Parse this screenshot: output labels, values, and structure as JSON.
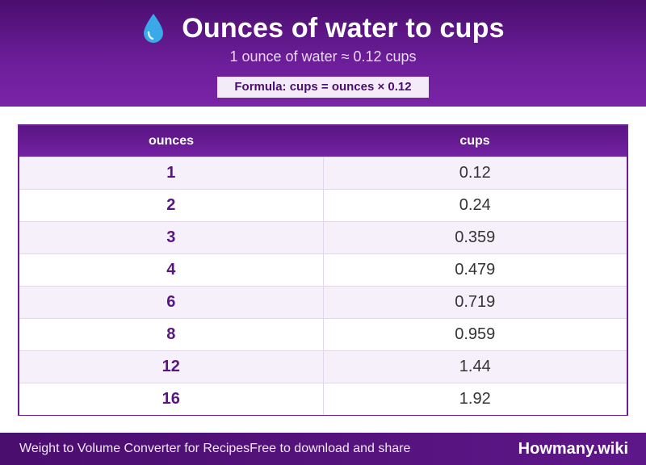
{
  "header": {
    "icon": "water-drop-icon",
    "title": "Ounces of water to cups",
    "subtitle": "1 ounce of water ≈ 0.12 cups",
    "formula": "Formula: cups = ounces × 0.12"
  },
  "table": {
    "columns": [
      "ounces",
      "cups"
    ],
    "rows": [
      {
        "ounces": "1",
        "cups": "0.12"
      },
      {
        "ounces": "2",
        "cups": "0.24"
      },
      {
        "ounces": "3",
        "cups": "0.359"
      },
      {
        "ounces": "4",
        "cups": "0.479"
      },
      {
        "ounces": "6",
        "cups": "0.719"
      },
      {
        "ounces": "8",
        "cups": "0.959"
      },
      {
        "ounces": "12",
        "cups": "1.44"
      },
      {
        "ounces": "16",
        "cups": "1.92"
      }
    ]
  },
  "footer": {
    "left_text_1": "Weight to Volume Converter for Recipes",
    "left_text_2": "Free to download and share",
    "brand": "Howmany.wiki"
  },
  "colors": {
    "primary": "#6b1d98",
    "primary_dark": "#4a0e6e",
    "drop": "#3aa9e8"
  }
}
